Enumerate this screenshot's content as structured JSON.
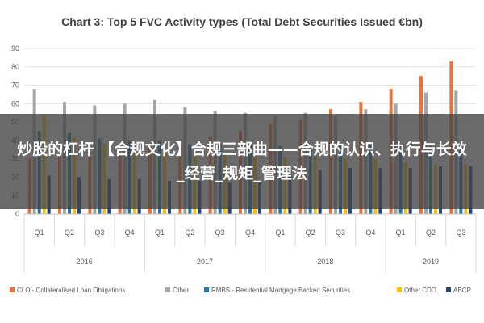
{
  "overlay": {
    "caption": "炒股的杠杆 【合规文化】合规三部曲——合规的认识、执行与长效_经营_规矩_管理法"
  },
  "chart_data": {
    "type": "bar",
    "title": "Chart 3: Top 5 FVC Activity types (Total Debt Securities Issued €bn)",
    "xlabel": "",
    "ylabel": "",
    "ylim": [
      0,
      90
    ],
    "yticks": [
      0,
      10,
      20,
      30,
      40,
      50,
      60,
      70,
      80,
      90
    ],
    "grid": true,
    "legend_position": "bottom",
    "categories": [
      "Q1",
      "Q2",
      "Q3",
      "Q4",
      "Q1",
      "Q2",
      "Q3",
      "Q4",
      "Q1",
      "Q2",
      "Q3",
      "Q4",
      "Q1",
      "Q2",
      "Q3"
    ],
    "year_groups": [
      {
        "label": "2016",
        "count": 4
      },
      {
        "label": "2017",
        "count": 4
      },
      {
        "label": "2018",
        "count": 4
      },
      {
        "label": "2019",
        "count": 3
      }
    ],
    "series": [
      {
        "name": "CLO - Collateralised Loan Obligations",
        "color": "#e8743b",
        "values": [
          30,
          31,
          31,
          33,
          37,
          38,
          42,
          45,
          49,
          51,
          57,
          61,
          68,
          75,
          83
        ]
      },
      {
        "name": "Other",
        "color": "#a5a5a5",
        "values": [
          68,
          61,
          59,
          60,
          62,
          58,
          56,
          55,
          53,
          55,
          53,
          57,
          60,
          66,
          67
        ]
      },
      {
        "name": "RMBS - Residential Mortgage Backed Securities",
        "color": "#1f77b4",
        "values": [
          45,
          44,
          41,
          40,
          40,
          38,
          38,
          38,
          37,
          38,
          37,
          38,
          38,
          37,
          37
        ]
      },
      {
        "name": "Other CDO",
        "color": "#ffc000",
        "values": [
          54,
          42,
          38,
          35,
          34,
          33,
          33,
          32,
          31,
          31,
          30,
          30,
          28,
          27,
          27
        ]
      },
      {
        "name": "ABCP",
        "color": "#264478",
        "values": [
          21,
          20,
          19,
          19,
          18,
          18,
          17,
          17,
          24,
          24,
          25,
          25,
          25,
          26,
          26
        ]
      }
    ]
  }
}
